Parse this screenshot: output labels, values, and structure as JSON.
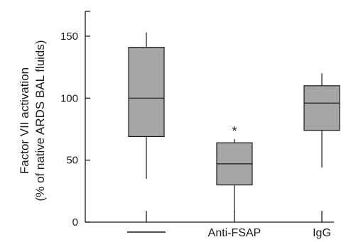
{
  "chart_data": {
    "type": "box",
    "ylabel_line1": "Factor VII activation",
    "ylabel_line2": "(% of native ARDS BAL fluids)",
    "ylim": [
      0,
      170
    ],
    "yticks": [
      0,
      50,
      100,
      150
    ],
    "categories": [
      "—",
      "Anti-FSAP",
      "IgG"
    ],
    "boxes": [
      {
        "category": "—",
        "whisker_low": 35,
        "q1": 69,
        "median": 100,
        "q3": 141,
        "whisker_high": 153,
        "annotation": ""
      },
      {
        "category": "Anti-FSAP",
        "whisker_low": 8,
        "q1": 30,
        "median": 47,
        "q3": 64,
        "whisker_high": 67,
        "annotation": "*"
      },
      {
        "category": "IgG",
        "whisker_low": 44,
        "q1": 74,
        "median": 96,
        "q3": 110,
        "whisker_high": 120,
        "annotation": ""
      }
    ],
    "box_color": "#a6a6a6",
    "line_color": "#1a1a1a"
  }
}
